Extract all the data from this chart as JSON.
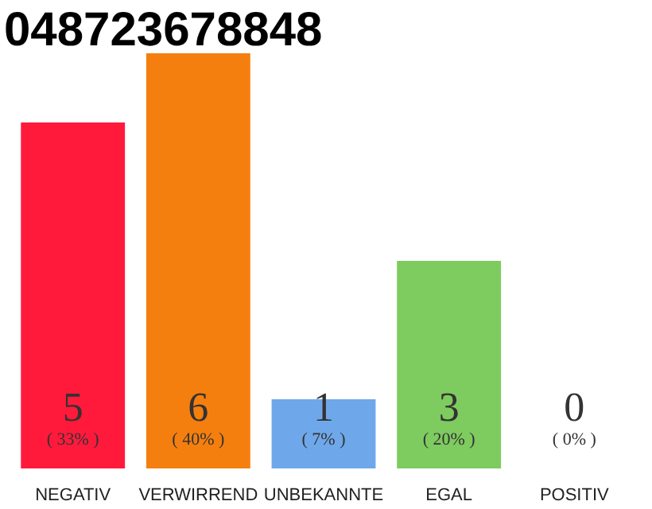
{
  "chart_data": {
    "type": "bar",
    "title": "048723678848",
    "categories": [
      "NEGATIV",
      "VERWIRREND",
      "UNBEKANNTE",
      "EGAL",
      "POSITIV"
    ],
    "tick_labels": "x",
    "series": [
      {
        "colors": [
          "#ff1a3c",
          "#f57f0e",
          "#6fa8ea",
          "#7ecb5f",
          "#cccccc"
        ],
        "values": [
          5,
          6,
          1,
          3,
          0
        ],
        "value_labels": [
          "5",
          "6",
          "1",
          "3",
          "0"
        ]
      }
    ],
    "annotations": [
      "( 33% )",
      "( 40% )",
      "( 7% )",
      "( 20% )",
      "( 0% )"
    ]
  }
}
